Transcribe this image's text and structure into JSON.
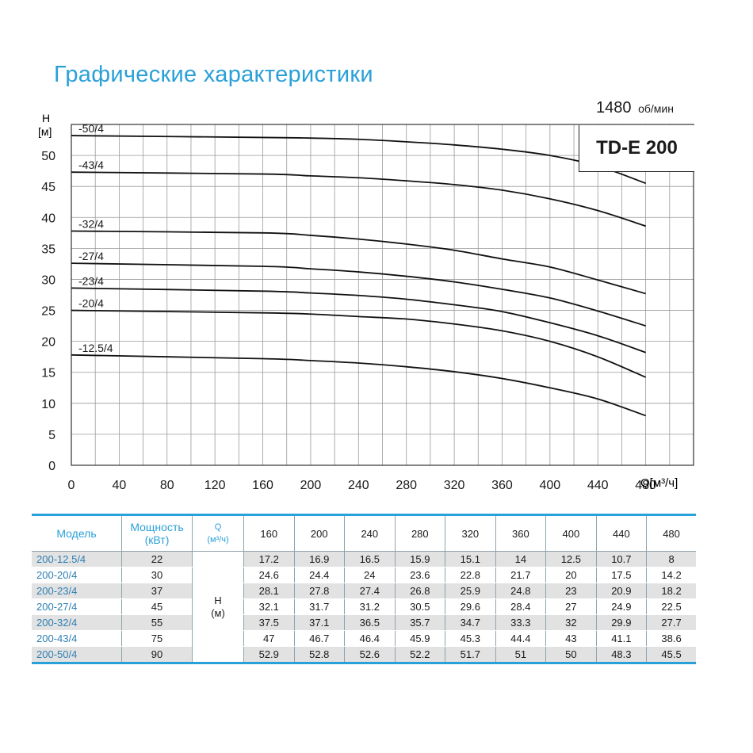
{
  "title": "Графические характеристики",
  "speed": {
    "value": "1480",
    "unit": "об/мин"
  },
  "model_label": "TD-E 200",
  "chart_data": {
    "type": "line",
    "xlabel": "Q[м³/ч]",
    "ylabel": "Н",
    "ylabel_unit": "[м]",
    "xlim": [
      0,
      520
    ],
    "ylim": [
      0,
      55
    ],
    "x_ticks": [
      0,
      40,
      80,
      120,
      160,
      200,
      240,
      280,
      320,
      360,
      400,
      440,
      480
    ],
    "x_tick_labels": [
      "0",
      "40",
      "80",
      "120",
      "160",
      "200",
      "240",
      "280",
      "320",
      "360",
      "400",
      "440",
      "480"
    ],
    "y_ticks": [
      0,
      5,
      10,
      15,
      20,
      25,
      30,
      35,
      40,
      45,
      50
    ],
    "y_tick_labels": [
      "0",
      "5",
      "10",
      "15",
      "20",
      "25",
      "30",
      "35",
      "40",
      "45",
      "50"
    ],
    "grid": true,
    "x": [
      0,
      160,
      200,
      240,
      280,
      320,
      360,
      400,
      440,
      480
    ],
    "series": [
      {
        "name": "-50/4",
        "values": [
          53.2,
          52.9,
          52.8,
          52.6,
          52.2,
          51.7,
          51,
          50,
          48.3,
          45.5
        ]
      },
      {
        "name": "-43/4",
        "values": [
          47.3,
          47,
          46.7,
          46.4,
          45.9,
          45.3,
          44.4,
          43,
          41.1,
          38.6
        ]
      },
      {
        "name": "-32/4",
        "values": [
          37.8,
          37.5,
          37.1,
          36.5,
          35.7,
          34.7,
          33.3,
          32,
          29.9,
          27.7
        ]
      },
      {
        "name": "-27/4",
        "values": [
          32.6,
          32.1,
          31.7,
          31.2,
          30.5,
          29.6,
          28.4,
          27,
          24.9,
          22.5
        ]
      },
      {
        "name": "-23/4",
        "values": [
          28.6,
          28.1,
          27.8,
          27.4,
          26.8,
          25.9,
          24.8,
          23,
          20.9,
          18.2
        ]
      },
      {
        "name": "-20/4",
        "values": [
          25,
          24.6,
          24.4,
          24,
          23.6,
          22.8,
          21.7,
          20,
          17.5,
          14.2
        ]
      },
      {
        "name": "-12.5/4",
        "values": [
          17.8,
          17.2,
          16.9,
          16.5,
          15.9,
          15.1,
          14,
          12.5,
          10.7,
          8
        ]
      }
    ]
  },
  "table": {
    "headers": {
      "model": "Модель",
      "power_line1": "Мощность",
      "power_line2": "(кВт)",
      "q_line1": "Q",
      "q_line2": "(м³/ч)",
      "h_line1": "H",
      "h_line2": "(м)"
    },
    "flows": [
      "160",
      "200",
      "240",
      "280",
      "320",
      "360",
      "400",
      "440",
      "480"
    ],
    "rows": [
      {
        "model": "200-12.5/4",
        "power": "22",
        "heads": [
          "17.2",
          "16.9",
          "16.5",
          "15.9",
          "15.1",
          "14",
          "12.5",
          "10.7",
          "8"
        ]
      },
      {
        "model": "200-20/4",
        "power": "30",
        "heads": [
          "24.6",
          "24.4",
          "24",
          "23.6",
          "22.8",
          "21.7",
          "20",
          "17.5",
          "14.2"
        ]
      },
      {
        "model": "200-23/4",
        "power": "37",
        "heads": [
          "28.1",
          "27.8",
          "27.4",
          "26.8",
          "25.9",
          "24.8",
          "23",
          "20.9",
          "18.2"
        ]
      },
      {
        "model": "200-27/4",
        "power": "45",
        "heads": [
          "32.1",
          "31.7",
          "31.2",
          "30.5",
          "29.6",
          "28.4",
          "27",
          "24.9",
          "22.5"
        ]
      },
      {
        "model": "200-32/4",
        "power": "55",
        "heads": [
          "37.5",
          "37.1",
          "36.5",
          "35.7",
          "34.7",
          "33.3",
          "32",
          "29.9",
          "27.7"
        ]
      },
      {
        "model": "200-43/4",
        "power": "75",
        "heads": [
          "47",
          "46.7",
          "46.4",
          "45.9",
          "45.3",
          "44.4",
          "43",
          "41.1",
          "38.6"
        ]
      },
      {
        "model": "200-50/4",
        "power": "90",
        "heads": [
          "52.9",
          "52.8",
          "52.6",
          "52.2",
          "51.7",
          "51",
          "50",
          "48.3",
          "45.5"
        ]
      }
    ]
  }
}
